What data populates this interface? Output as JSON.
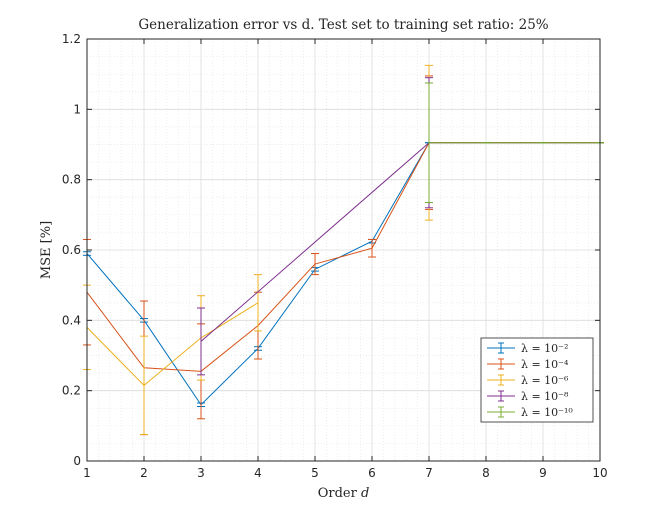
{
  "chart_data": {
    "type": "line",
    "title": "Generalization error vs d. Test set to training set ratio: 25%",
    "xlabel": "Order d",
    "ylabel": "MSE [%]",
    "xlim": [
      1,
      10
    ],
    "ylim": [
      0,
      1.2
    ],
    "xticks": [
      1,
      2,
      3,
      4,
      5,
      6,
      7,
      8,
      9,
      10
    ],
    "yticks": [
      0,
      0.2,
      0.4,
      0.6,
      0.8,
      1,
      1.2
    ],
    "ytick_labels": [
      "0",
      "0.2",
      "0.4",
      "0.6",
      "0.8",
      "1",
      "1.2"
    ],
    "grid": true,
    "minor_grid": true,
    "legend_position": "bottom-right",
    "series": [
      {
        "name": "λ = 10⁻²",
        "color": "#0072BD",
        "x": [
          1,
          2,
          3,
          4,
          5,
          6,
          7,
          8,
          9,
          10
        ],
        "y": [
          0.59,
          0.4,
          0.16,
          0.32,
          0.545,
          0.625,
          0.905,
          0.905,
          0.905,
          0.905
        ],
        "err": [
          0.005,
          0.005,
          0.005,
          0.005,
          0.005,
          0.005,
          0.0,
          0.0,
          0.0,
          0.0
        ]
      },
      {
        "name": "λ = 10⁻⁴",
        "color": "#D95319",
        "x": [
          1,
          2,
          3,
          4,
          5,
          6,
          7,
          8,
          9,
          10
        ],
        "y": [
          0.48,
          0.265,
          0.255,
          0.385,
          0.56,
          0.605,
          0.905,
          0.905,
          0.905,
          0.905
        ],
        "err": [
          0.15,
          0.19,
          0.135,
          0.095,
          0.03,
          0.025,
          0.19,
          0.0,
          0.0,
          0.0
        ]
      },
      {
        "name": "λ = 10⁻⁶",
        "color": "#EDB120",
        "x": [
          1,
          2,
          3,
          4,
          5,
          6,
          7,
          8,
          9,
          10
        ],
        "y": [
          0.38,
          0.215,
          0.35,
          0.45,
          null,
          null,
          0.905,
          0.905,
          0.905,
          0.905
        ],
        "err": [
          0.12,
          0.14,
          0.12,
          0.08,
          null,
          null,
          0.22,
          0.0,
          0.0,
          0.0
        ]
      },
      {
        "name": "λ = 10⁻⁸",
        "color": "#7E2F8E",
        "x": [
          3,
          7,
          8,
          9,
          10
        ],
        "y": [
          0.34,
          0.905,
          0.905,
          0.905,
          0.905
        ],
        "err": [
          0.095,
          0.185,
          0.0,
          0.0,
          0.0
        ]
      },
      {
        "name": "λ = 10⁻¹⁰",
        "color": "#77AC30",
        "x": [
          7,
          8,
          9,
          10
        ],
        "y": [
          0.905,
          0.905,
          0.905,
          0.905
        ],
        "err": [
          0.17,
          0.0,
          0.0,
          0.0
        ]
      }
    ]
  }
}
